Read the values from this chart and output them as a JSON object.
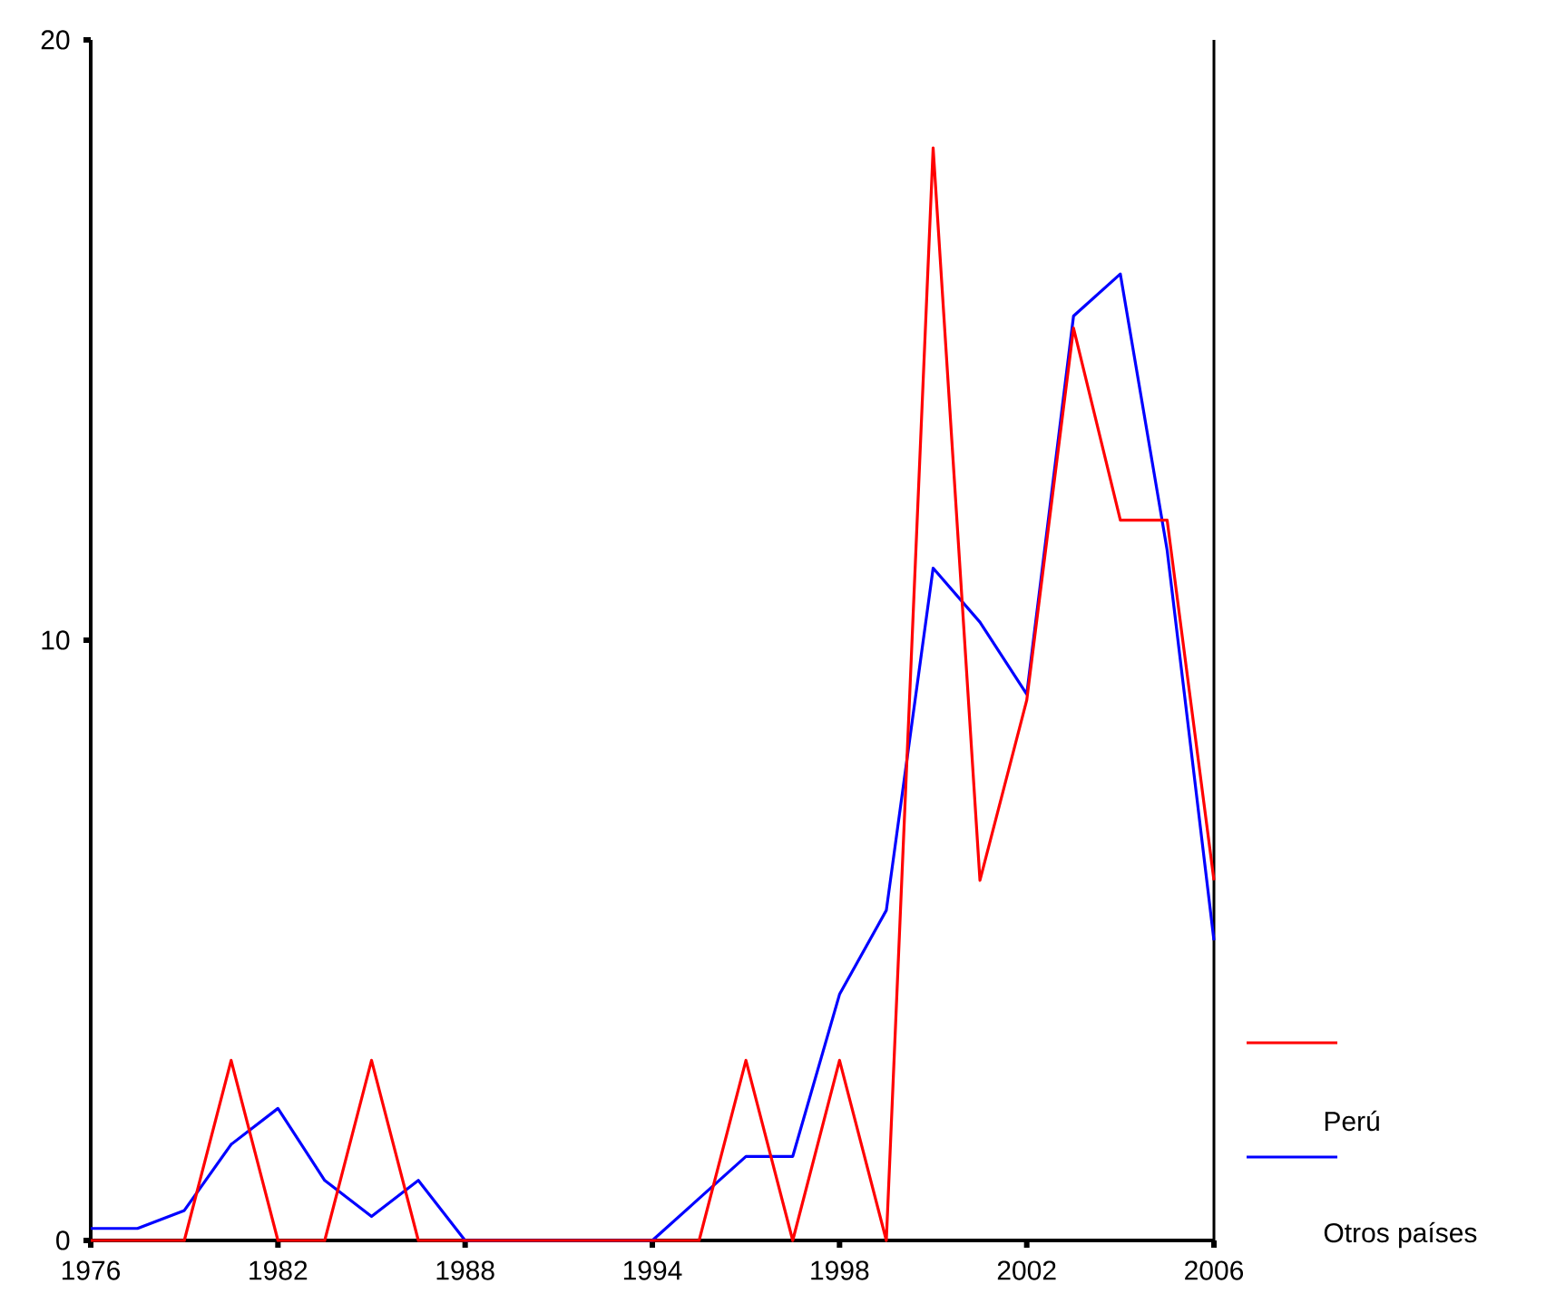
{
  "chart_data": {
    "type": "line",
    "categories": [
      "1976",
      null,
      null,
      null,
      "1982",
      null,
      null,
      null,
      "1988",
      null,
      null,
      null,
      "1994",
      null,
      null,
      null,
      "1998",
      null,
      null,
      null,
      "2002",
      null,
      null,
      null,
      "2006"
    ],
    "series": [
      {
        "name": "Perú",
        "color": "#ff0000",
        "values": [
          0,
          0,
          0,
          3,
          0,
          0,
          3,
          0,
          0,
          0,
          0,
          0,
          0,
          0,
          3,
          0,
          3,
          0,
          18.2,
          6,
          9,
          15.2,
          12,
          12,
          6
        ]
      },
      {
        "name": "Otros países",
        "color": "#0000ff",
        "values": [
          0.2,
          0.2,
          0.5,
          1.6,
          2.2,
          1.0,
          0.4,
          1.0,
          0,
          0,
          0,
          0,
          0,
          0.7,
          1.4,
          1.4,
          4.1,
          5.5,
          11.2,
          10.3,
          9.1,
          15.4,
          16.1,
          11.5,
          5.0
        ]
      }
    ],
    "ylim": [
      0,
      20
    ],
    "yticks": [
      0,
      10,
      20
    ],
    "legend": "right",
    "grid": false,
    "marker": "none",
    "line_style": "solid"
  }
}
